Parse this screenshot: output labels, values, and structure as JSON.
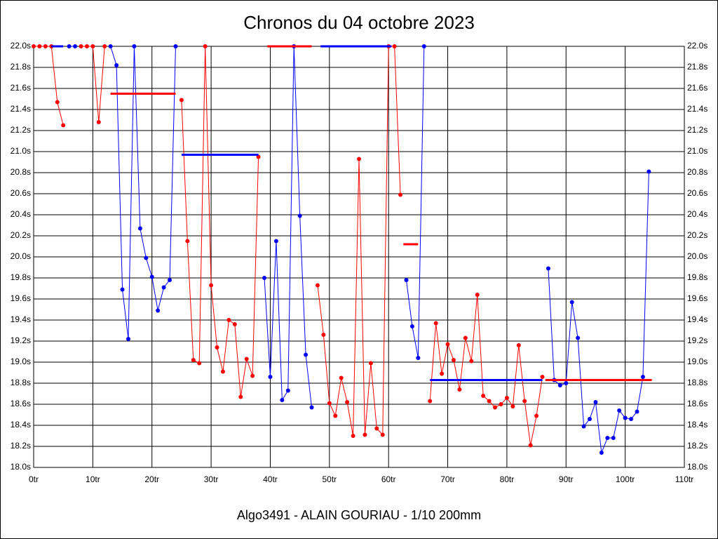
{
  "chart_data": {
    "type": "line",
    "title": "Chronos du 04 octobre 2023",
    "footer": "Algo3491 - ALAIN GOURIAU - 1/10 200mm",
    "x": [
      0,
      1,
      2,
      3,
      4,
      5,
      6,
      7,
      8,
      9,
      10,
      11,
      12,
      13,
      14,
      15,
      16,
      17,
      18,
      19,
      20,
      21,
      22,
      23,
      24,
      25,
      26,
      27,
      28,
      29,
      30,
      31,
      32,
      33,
      34,
      35,
      36,
      37,
      38,
      39,
      40,
      41,
      42,
      43,
      44,
      45,
      46,
      47,
      48,
      49,
      50,
      51,
      52,
      53,
      54,
      55,
      56,
      57,
      58,
      59,
      60,
      61,
      62,
      63,
      64,
      65,
      66,
      67,
      68,
      69,
      70,
      71,
      72,
      73,
      74,
      75,
      76,
      77,
      78,
      79,
      80,
      81,
      82,
      83,
      84,
      85,
      86,
      87,
      88,
      89,
      90,
      91,
      92,
      93,
      94,
      95,
      96,
      97,
      98,
      99,
      100,
      101,
      102,
      103,
      104
    ],
    "series": [
      {
        "color": "#ff0000",
        "values": [
          22,
          22,
          22,
          22,
          21.47,
          21.25,
          null,
          null,
          22,
          22,
          22,
          21.28,
          22,
          null,
          null,
          null,
          null,
          null,
          null,
          null,
          null,
          null,
          null,
          null,
          null,
          21.49,
          20.15,
          19.02,
          18.99,
          22,
          19.73,
          19.14,
          18.91,
          19.4,
          19.36,
          18.67,
          19.03,
          18.87,
          20.95,
          null,
          null,
          null,
          null,
          null,
          null,
          null,
          null,
          null,
          19.73,
          19.26,
          18.61,
          18.49,
          18.85,
          18.62,
          18.3,
          20.93,
          18.31,
          18.99,
          18.37,
          18.31,
          22,
          22,
          20.59,
          null,
          null,
          null,
          null,
          18.63,
          19.37,
          18.89,
          19.17,
          19.02,
          18.74,
          19.23,
          19.01,
          19.64,
          18.68,
          18.63,
          18.57,
          18.6,
          18.66,
          18.58,
          19.16,
          18.63,
          18.21,
          18.49,
          18.86,
          null,
          null,
          null,
          null,
          null,
          null,
          null,
          null,
          null,
          null,
          null,
          null,
          null,
          null,
          null,
          null,
          null,
          null
        ]
      },
      {
        "color": "#0000ff",
        "values": [
          null,
          null,
          null,
          null,
          null,
          null,
          22,
          22,
          null,
          null,
          null,
          null,
          null,
          22,
          21.82,
          19.69,
          19.22,
          22,
          20.27,
          19.99,
          19.81,
          19.49,
          19.71,
          19.78,
          22,
          null,
          null,
          null,
          null,
          null,
          null,
          null,
          null,
          null,
          null,
          null,
          null,
          null,
          null,
          19.8,
          18.86,
          20.15,
          18.64,
          18.73,
          22,
          20.39,
          19.07,
          18.57,
          null,
          null,
          null,
          null,
          null,
          null,
          null,
          null,
          null,
          null,
          null,
          null,
          null,
          null,
          null,
          19.78,
          19.34,
          19.04,
          22,
          null,
          null,
          null,
          null,
          null,
          null,
          null,
          null,
          null,
          null,
          null,
          null,
          null,
          null,
          null,
          null,
          null,
          null,
          null,
          null,
          19.89,
          18.83,
          18.78,
          18.8,
          19.57,
          19.23,
          18.39,
          18.46,
          18.62,
          18.14,
          18.28,
          18.28,
          18.54,
          18.47,
          18.46,
          18.53,
          18.86,
          20.81
        ]
      }
    ],
    "averages": [
      {
        "color": "#0000ff",
        "x": [
          3,
          5
        ],
        "value": 22
      },
      {
        "color": "#ff0000",
        "x": [
          13,
          24
        ],
        "value": 21.55
      },
      {
        "color": "#0000ff",
        "x": [
          25,
          38
        ],
        "value": 20.97
      },
      {
        "color": "#ff0000",
        "x": [
          39.5,
          47
        ],
        "value": 22
      },
      {
        "color": "#0000ff",
        "x": [
          48.5,
          60.5
        ],
        "value": 22
      },
      {
        "color": "#ff0000",
        "x": [
          62.5,
          65
        ],
        "value": 20.12
      },
      {
        "color": "#0000ff",
        "x": [
          67,
          86
        ],
        "value": 18.83
      },
      {
        "color": "#ff0000",
        "x": [
          86.5,
          104.5
        ],
        "value": 18.83
      }
    ],
    "xlim": [
      0,
      110
    ],
    "xticks": [
      {
        "value": 0,
        "label": "0tr"
      },
      {
        "value": 10,
        "label": "10tr"
      },
      {
        "value": 20,
        "label": "20tr"
      },
      {
        "value": 30,
        "label": "30tr"
      },
      {
        "value": 40,
        "label": "40tr"
      },
      {
        "value": 50,
        "label": "50tr"
      },
      {
        "value": 60,
        "label": "60tr"
      },
      {
        "value": 70,
        "label": "70tr"
      },
      {
        "value": 80,
        "label": "80tr"
      },
      {
        "value": 90,
        "label": "90tr"
      },
      {
        "value": 100,
        "label": "100tr"
      },
      {
        "value": 110,
        "label": "110tr"
      }
    ],
    "ylim": [
      18,
      22
    ],
    "yticks": [
      {
        "value": 18,
        "label": "18.0s"
      },
      {
        "value": 18.2,
        "label": "18.2s"
      },
      {
        "value": 18.4,
        "label": "18.4s"
      },
      {
        "value": 18.6,
        "label": "18.6s"
      },
      {
        "value": 18.8,
        "label": "18.8s"
      },
      {
        "value": 19,
        "label": "19.0s"
      },
      {
        "value": 19.2,
        "label": "19.2s"
      },
      {
        "value": 19.4,
        "label": "19.4s"
      },
      {
        "value": 19.6,
        "label": "19.6s"
      },
      {
        "value": 19.8,
        "label": "19.8s"
      },
      {
        "value": 20,
        "label": "20.0s"
      },
      {
        "value": 20.2,
        "label": "20.2s"
      },
      {
        "value": 20.4,
        "label": "20.4s"
      },
      {
        "value": 20.6,
        "label": "20.6s"
      },
      {
        "value": 20.8,
        "label": "20.8s"
      },
      {
        "value": 21,
        "label": "21.0s"
      },
      {
        "value": 21.2,
        "label": "21.2s"
      },
      {
        "value": 21.4,
        "label": "21.4s"
      },
      {
        "value": 21.6,
        "label": "21.6s"
      },
      {
        "value": 21.8,
        "label": "21.8s"
      },
      {
        "value": 22,
        "label": "22.0s"
      }
    ],
    "grid": true
  }
}
